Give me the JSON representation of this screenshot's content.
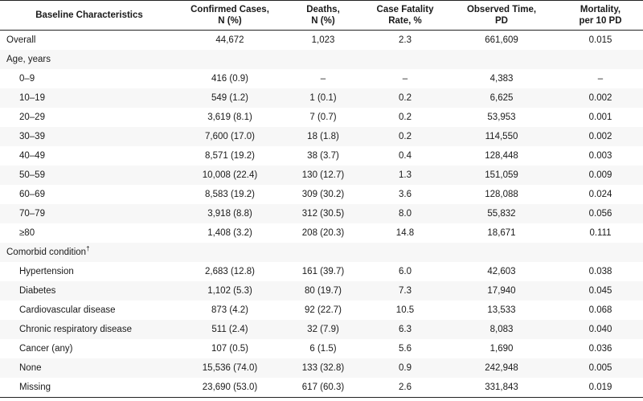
{
  "table": {
    "headers": [
      [
        "Baseline Characteristics",
        ""
      ],
      [
        "Confirmed Cases,",
        "N (%)"
      ],
      [
        "Deaths,",
        "N (%)"
      ],
      [
        "Case Fatality",
        "Rate, %"
      ],
      [
        "Observed Time,",
        "PD"
      ],
      [
        "Mortality,",
        "per 10 PD"
      ]
    ],
    "rows": [
      {
        "label": "Overall",
        "sup": "",
        "sub": false,
        "values": [
          "44,672",
          "1,023",
          "2.3",
          "661,609",
          "0.015"
        ]
      },
      {
        "label": "Age, years",
        "sup": "",
        "sub": false,
        "values": [
          "",
          "",
          "",
          "",
          ""
        ]
      },
      {
        "label": "0–9",
        "sup": "",
        "sub": true,
        "values": [
          "416 (0.9)",
          "–",
          "–",
          "4,383",
          "–"
        ]
      },
      {
        "label": "10–19",
        "sup": "",
        "sub": true,
        "values": [
          "549 (1.2)",
          "1 (0.1)",
          "0.2",
          "6,625",
          "0.002"
        ]
      },
      {
        "label": "20–29",
        "sup": "",
        "sub": true,
        "values": [
          "3,619 (8.1)",
          "7 (0.7)",
          "0.2",
          "53,953",
          "0.001"
        ]
      },
      {
        "label": "30–39",
        "sup": "",
        "sub": true,
        "values": [
          "7,600 (17.0)",
          "18 (1.8)",
          "0.2",
          "114,550",
          "0.002"
        ]
      },
      {
        "label": "40–49",
        "sup": "",
        "sub": true,
        "values": [
          "8,571 (19.2)",
          "38 (3.7)",
          "0.4",
          "128,448",
          "0.003"
        ]
      },
      {
        "label": "50–59",
        "sup": "",
        "sub": true,
        "values": [
          "10,008 (22.4)",
          "130 (12.7)",
          "1.3",
          "151,059",
          "0.009"
        ]
      },
      {
        "label": "60–69",
        "sup": "",
        "sub": true,
        "values": [
          "8,583 (19.2)",
          "309 (30.2)",
          "3.6",
          "128,088",
          "0.024"
        ]
      },
      {
        "label": "70–79",
        "sup": "",
        "sub": true,
        "values": [
          "3,918 (8.8)",
          "312 (30.5)",
          "8.0",
          "55,832",
          "0.056"
        ]
      },
      {
        "label": "≥80",
        "sup": "",
        "sub": true,
        "values": [
          "1,408 (3.2)",
          "208 (20.3)",
          "14.8",
          "18,671",
          "0.111"
        ]
      },
      {
        "label": "Comorbid condition",
        "sup": "†",
        "sub": false,
        "values": [
          "",
          "",
          "",
          "",
          ""
        ]
      },
      {
        "label": "Hypertension",
        "sup": "",
        "sub": true,
        "values": [
          "2,683 (12.8)",
          "161 (39.7)",
          "6.0",
          "42,603",
          "0.038"
        ]
      },
      {
        "label": "Diabetes",
        "sup": "",
        "sub": true,
        "values": [
          "1,102 (5.3)",
          "80 (19.7)",
          "7.3",
          "17,940",
          "0.045"
        ]
      },
      {
        "label": "Cardiovascular disease",
        "sup": "",
        "sub": true,
        "values": [
          "873 (4.2)",
          "92 (22.7)",
          "10.5",
          "13,533",
          "0.068"
        ]
      },
      {
        "label": "Chronic respiratory disease",
        "sup": "",
        "sub": true,
        "values": [
          "511 (2.4)",
          "32 (7.9)",
          "6.3",
          "8,083",
          "0.040"
        ]
      },
      {
        "label": "Cancer (any)",
        "sup": "",
        "sub": true,
        "values": [
          "107 (0.5)",
          "6 (1.5)",
          "5.6",
          "1,690",
          "0.036"
        ]
      },
      {
        "label": "None",
        "sup": "",
        "sub": true,
        "values": [
          "15,536 (74.0)",
          "133 (32.8)",
          "0.9",
          "242,948",
          "0.005"
        ]
      },
      {
        "label": "Missing",
        "sup": "",
        "sub": true,
        "values": [
          "23,690 (53.0)",
          "617 (60.3)",
          "2.6",
          "331,843",
          "0.019"
        ]
      }
    ]
  }
}
